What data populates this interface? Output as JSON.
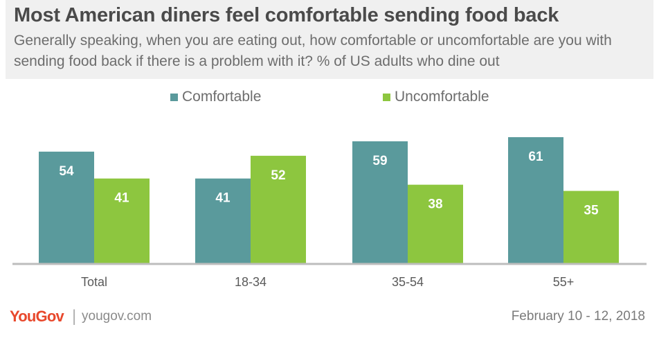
{
  "title": "Most American diners feel comfortable sending food back",
  "subtitle": "Generally speaking, when you are eating out, how comfortable or uncomfortable are you with sending food back if there is a problem with it? % of US adults who dine out",
  "footer": {
    "brand": "YouGov",
    "separator": "|",
    "site": "yougov.com",
    "date": "February 10 - 12, 2018"
  },
  "colors": {
    "comfortable": "#5a9a9c",
    "uncomfortable": "#8dc63f"
  },
  "chart_data": {
    "type": "bar",
    "categories": [
      "Total",
      "18-34",
      "35-54",
      "55+"
    ],
    "series": [
      {
        "name": "Comfortable",
        "values": [
          54,
          41,
          59,
          61
        ]
      },
      {
        "name": "Uncomfortable",
        "values": [
          41,
          52,
          38,
          35
        ]
      }
    ],
    "ylim": [
      0,
      61
    ],
    "grid": false,
    "legend": "top-center",
    "data_labels": true
  }
}
